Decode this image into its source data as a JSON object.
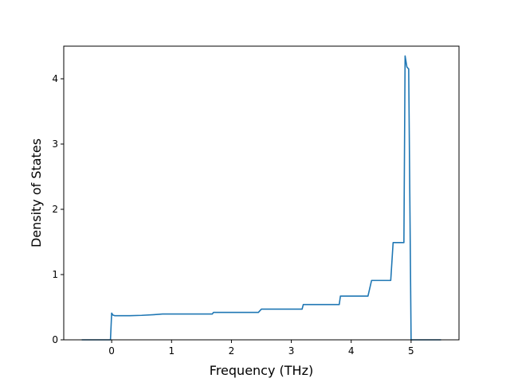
{
  "chart_data": {
    "type": "line",
    "title": "",
    "xlabel": "Frequency (THz)",
    "ylabel": "Density of States",
    "xlim": [
      -0.8,
      5.8
    ],
    "ylim": [
      0,
      4.5
    ],
    "xticks": [
      0,
      1,
      2,
      3,
      4,
      5
    ],
    "yticks": [
      0,
      1,
      2,
      3,
      4
    ],
    "grid": false,
    "legend": "none",
    "series": [
      {
        "color": "#1f77b4",
        "x": [
          -0.5,
          -0.02,
          0.0,
          0.02,
          0.05,
          0.3,
          0.5,
          0.7,
          0.85,
          1.0,
          1.2,
          1.4,
          1.68,
          1.7,
          2.0,
          2.2,
          2.45,
          2.5,
          2.8,
          3.18,
          3.2,
          3.5,
          3.8,
          3.82,
          4.0,
          4.28,
          4.34,
          4.45,
          4.66,
          4.7,
          4.88,
          4.9,
          4.93,
          4.96,
          5.0,
          5.2,
          5.5
        ],
        "y": [
          0,
          0,
          0.41,
          0.38,
          0.37,
          0.37,
          0.375,
          0.385,
          0.395,
          0.395,
          0.395,
          0.395,
          0.395,
          0.42,
          0.42,
          0.42,
          0.42,
          0.47,
          0.47,
          0.47,
          0.54,
          0.54,
          0.54,
          0.67,
          0.67,
          0.67,
          0.91,
          0.91,
          0.91,
          1.49,
          1.49,
          4.35,
          4.18,
          4.15,
          0,
          0,
          0
        ]
      }
    ]
  }
}
